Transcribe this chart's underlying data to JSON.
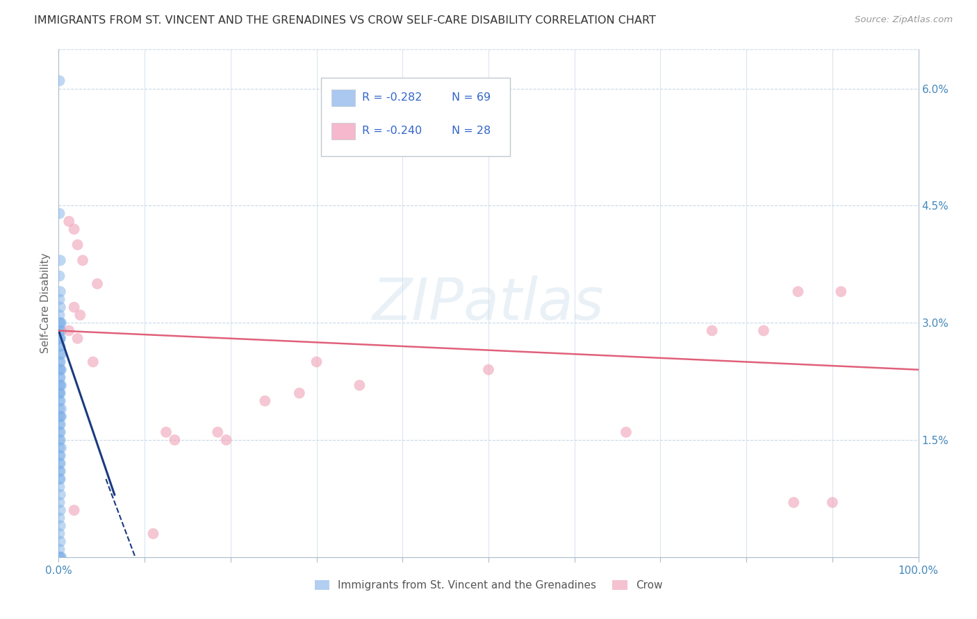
{
  "title": "IMMIGRANTS FROM ST. VINCENT AND THE GRENADINES VS CROW SELF-CARE DISABILITY CORRELATION CHART",
  "source": "Source: ZipAtlas.com",
  "ylabel": "Self-Care Disability",
  "ytick_vals": [
    0.06,
    0.045,
    0.03,
    0.015
  ],
  "ytick_labels": [
    "6.0%",
    "4.5%",
    "3.0%",
    "1.5%"
  ],
  "xlim": [
    0.0,
    1.0
  ],
  "ylim": [
    0.0,
    0.065
  ],
  "legend_r_n": [
    {
      "r": "R = -0.282",
      "n": "N = 69",
      "box_color": "#aac8f0",
      "text_color": "#3366cc"
    },
    {
      "r": "R = -0.240",
      "n": "N = 28",
      "box_color": "#f5b8cc",
      "text_color": "#3366cc"
    }
  ],
  "legend_labels_bottom": [
    "Immigrants from St. Vincent and the Grenadines",
    "Crow"
  ],
  "blue_scatter": [
    [
      0.001,
      0.061
    ],
    [
      0.001,
      0.044
    ],
    [
      0.002,
      0.038
    ],
    [
      0.001,
      0.036
    ],
    [
      0.002,
      0.034
    ],
    [
      0.001,
      0.033
    ],
    [
      0.002,
      0.032
    ],
    [
      0.001,
      0.031
    ],
    [
      0.003,
      0.03
    ],
    [
      0.002,
      0.03
    ],
    [
      0.001,
      0.03
    ],
    [
      0.002,
      0.029
    ],
    [
      0.003,
      0.029
    ],
    [
      0.001,
      0.029
    ],
    [
      0.002,
      0.028
    ],
    [
      0.001,
      0.028
    ],
    [
      0.002,
      0.028
    ],
    [
      0.001,
      0.027
    ],
    [
      0.002,
      0.027
    ],
    [
      0.003,
      0.026
    ],
    [
      0.002,
      0.026
    ],
    [
      0.001,
      0.025
    ],
    [
      0.002,
      0.025
    ],
    [
      0.001,
      0.024
    ],
    [
      0.003,
      0.024
    ],
    [
      0.002,
      0.024
    ],
    [
      0.001,
      0.023
    ],
    [
      0.002,
      0.023
    ],
    [
      0.001,
      0.022
    ],
    [
      0.003,
      0.022
    ],
    [
      0.002,
      0.022
    ],
    [
      0.001,
      0.021
    ],
    [
      0.002,
      0.021
    ],
    [
      0.001,
      0.021
    ],
    [
      0.002,
      0.02
    ],
    [
      0.001,
      0.02
    ],
    [
      0.003,
      0.019
    ],
    [
      0.001,
      0.019
    ],
    [
      0.002,
      0.018
    ],
    [
      0.001,
      0.018
    ],
    [
      0.003,
      0.018
    ],
    [
      0.001,
      0.017
    ],
    [
      0.002,
      0.017
    ],
    [
      0.001,
      0.016
    ],
    [
      0.002,
      0.016
    ],
    [
      0.001,
      0.015
    ],
    [
      0.002,
      0.015
    ],
    [
      0.003,
      0.014
    ],
    [
      0.001,
      0.014
    ],
    [
      0.002,
      0.013
    ],
    [
      0.001,
      0.013
    ],
    [
      0.002,
      0.012
    ],
    [
      0.001,
      0.012
    ],
    [
      0.001,
      0.011
    ],
    [
      0.002,
      0.011
    ],
    [
      0.001,
      0.01
    ],
    [
      0.002,
      0.01
    ],
    [
      0.001,
      0.009
    ],
    [
      0.002,
      0.008
    ],
    [
      0.001,
      0.007
    ],
    [
      0.002,
      0.006
    ],
    [
      0.001,
      0.005
    ],
    [
      0.002,
      0.004
    ],
    [
      0.001,
      0.003
    ],
    [
      0.002,
      0.002
    ],
    [
      0.001,
      0.001
    ],
    [
      0.003,
      0.0
    ],
    [
      0.001,
      0.0
    ],
    [
      0.002,
      0.0
    ]
  ],
  "pink_scatter": [
    [
      0.012,
      0.043
    ],
    [
      0.018,
      0.042
    ],
    [
      0.022,
      0.04
    ],
    [
      0.028,
      0.038
    ],
    [
      0.045,
      0.035
    ],
    [
      0.018,
      0.032
    ],
    [
      0.025,
      0.031
    ],
    [
      0.012,
      0.029
    ],
    [
      0.022,
      0.028
    ],
    [
      0.04,
      0.025
    ],
    [
      0.3,
      0.025
    ],
    [
      0.5,
      0.024
    ],
    [
      0.35,
      0.022
    ],
    [
      0.28,
      0.021
    ],
    [
      0.24,
      0.02
    ],
    [
      0.86,
      0.034
    ],
    [
      0.91,
      0.034
    ],
    [
      0.82,
      0.029
    ],
    [
      0.76,
      0.029
    ],
    [
      0.66,
      0.016
    ],
    [
      0.125,
      0.016
    ],
    [
      0.185,
      0.016
    ],
    [
      0.135,
      0.015
    ],
    [
      0.195,
      0.015
    ],
    [
      0.855,
      0.007
    ],
    [
      0.9,
      0.007
    ],
    [
      0.018,
      0.006
    ],
    [
      0.11,
      0.003
    ]
  ],
  "blue_solid_line": {
    "x": [
      0.0,
      0.065
    ],
    "y": [
      0.029,
      0.008
    ]
  },
  "blue_dashed_line": {
    "x": [
      0.055,
      0.13
    ],
    "y": [
      0.01,
      -0.012
    ]
  },
  "pink_line": {
    "x": [
      0.0,
      1.0
    ],
    "y": [
      0.029,
      0.024
    ]
  },
  "blue_scatter_color": "#7fb0e8",
  "pink_scatter_color": "#f0a8bc",
  "blue_line_color": "#1a3a80",
  "pink_line_color": "#e0607a",
  "background_color": "#ffffff",
  "grid_color": "#c8d8e8",
  "watermark": "ZIPatlas",
  "title_fontsize": 11.5,
  "source_fontsize": 9.5
}
